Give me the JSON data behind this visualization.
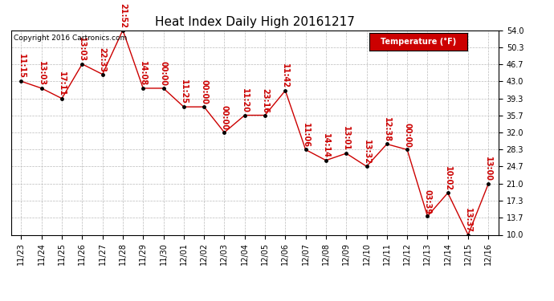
{
  "title": "Heat Index Daily High 20161217",
  "copyright": "Copyright 2016 Cartronics.com",
  "legend_label": "Temperature (°F)",
  "dates": [
    "11/23",
    "11/24",
    "11/25",
    "11/26",
    "11/27",
    "11/28",
    "11/29",
    "11/30",
    "12/01",
    "12/02",
    "12/03",
    "12/04",
    "12/05",
    "12/06",
    "12/07",
    "12/08",
    "12/09",
    "12/10",
    "12/11",
    "12/12",
    "12/13",
    "12/14",
    "12/15",
    "12/16"
  ],
  "values": [
    43.0,
    41.5,
    39.3,
    46.7,
    44.5,
    54.0,
    41.5,
    41.5,
    37.5,
    37.5,
    32.0,
    35.7,
    35.7,
    41.0,
    28.3,
    26.0,
    27.5,
    24.7,
    29.5,
    28.3,
    14.0,
    19.0,
    10.0,
    21.0
  ],
  "times": [
    "11:15",
    "13:03",
    "17:11",
    "13:03",
    "22:33",
    "21:52",
    "14:08",
    "00:00",
    "11:25",
    "00:00",
    "00:00",
    "11:20",
    "23:16",
    "11:42",
    "11:06",
    "14:14",
    "13:01",
    "13:32",
    "12:38",
    "00:00",
    "03:39",
    "10:02",
    "13:37",
    "13:00"
  ],
  "line_color": "#cc0000",
  "marker_color": "#000000",
  "grid_color": "#bbbbbb",
  "bg_color": "#ffffff",
  "title_fontsize": 11,
  "tick_fontsize": 7,
  "annotation_fontsize": 7,
  "copyright_fontsize": 6.5,
  "legend_fontsize": 7,
  "ylim_min": 10.0,
  "ylim_max": 54.0,
  "yticks": [
    10.0,
    13.7,
    17.3,
    21.0,
    24.7,
    28.3,
    32.0,
    35.7,
    39.3,
    43.0,
    46.7,
    50.3,
    54.0
  ]
}
